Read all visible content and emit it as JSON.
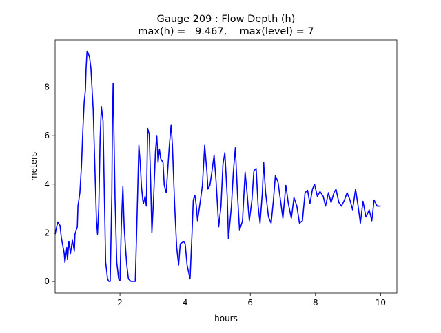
{
  "chart_data": {
    "type": "line",
    "title": "Gauge 209 : Flow Depth (h)",
    "subtitle": "max(h) =   9.467,    max(level) = 7",
    "xlabel": "hours",
    "ylabel": "meters",
    "xlim": [
      0.01,
      10.5
    ],
    "ylim": [
      -0.48,
      9.94
    ],
    "xticks": [
      2,
      4,
      6,
      8,
      10
    ],
    "xtick_labels": [
      "2",
      "4",
      "6",
      "8",
      "10"
    ],
    "yticks": [
      0,
      2,
      4,
      6,
      8
    ],
    "ytick_labels": [
      "0",
      "2",
      "4",
      "6",
      "8"
    ],
    "grid": false,
    "series": [
      {
        "name": "h",
        "color": "#0000ff",
        "x": [
          0.01,
          0.09,
          0.16,
          0.2,
          0.29,
          0.31,
          0.37,
          0.39,
          0.43,
          0.48,
          0.54,
          0.6,
          0.62,
          0.69,
          0.71,
          0.77,
          0.82,
          0.86,
          0.9,
          0.94,
          0.96,
          0.99,
          1.03,
          1.07,
          1.11,
          1.18,
          1.24,
          1.28,
          1.31,
          1.35,
          1.39,
          1.43,
          1.48,
          1.52,
          1.56,
          1.62,
          1.66,
          1.7,
          1.75,
          1.77,
          1.79,
          1.81,
          1.85,
          1.9,
          1.96,
          2.0,
          2.04,
          2.09,
          2.13,
          2.17,
          2.21,
          2.26,
          2.34,
          2.47,
          2.51,
          2.58,
          2.62,
          2.66,
          2.7,
          2.72,
          2.77,
          2.81,
          2.85,
          2.9,
          2.94,
          2.98,
          3.03,
          3.09,
          3.13,
          3.17,
          3.21,
          3.25,
          3.32,
          3.36,
          3.42,
          3.51,
          3.57,
          3.61,
          3.68,
          3.74,
          3.8,
          3.85,
          3.91,
          3.95,
          4.0,
          4.06,
          4.15,
          4.21,
          4.25,
          4.3,
          4.34,
          4.38,
          4.47,
          4.53,
          4.6,
          4.67,
          4.7,
          4.76,
          4.82,
          4.89,
          4.95,
          5.03,
          5.1,
          5.16,
          5.22,
          5.29,
          5.33,
          5.42,
          5.48,
          5.54,
          5.61,
          5.67,
          5.76,
          5.84,
          5.9,
          5.97,
          6.05,
          6.11,
          6.18,
          6.24,
          6.3,
          6.37,
          6.41,
          6.47,
          6.56,
          6.64,
          6.71,
          6.77,
          6.85,
          6.94,
          7.0,
          7.09,
          7.17,
          7.26,
          7.34,
          7.43,
          7.51,
          7.6,
          7.68,
          7.76,
          7.83,
          7.91,
          7.97,
          8.06,
          8.14,
          8.24,
          8.31,
          8.4,
          8.48,
          8.57,
          8.63,
          8.72,
          8.8,
          8.89,
          8.97,
          9.06,
          9.14,
          9.23,
          9.31,
          9.38,
          9.46,
          9.55,
          9.65,
          9.73,
          9.8,
          9.89,
          9.97,
          10.0
        ],
        "y": [
          1.95,
          2.45,
          2.3,
          1.8,
          1.15,
          0.78,
          1.4,
          0.9,
          1.65,
          1.15,
          1.7,
          1.25,
          1.95,
          2.25,
          3.1,
          3.65,
          4.8,
          6.2,
          7.35,
          7.9,
          8.75,
          9.47,
          9.38,
          9.2,
          8.75,
          7.05,
          4.2,
          2.5,
          1.95,
          3.1,
          5.9,
          7.2,
          6.6,
          3.65,
          0.8,
          0.1,
          0.0,
          0.0,
          3.65,
          6.75,
          8.15,
          6.5,
          3.35,
          0.8,
          0.1,
          0.03,
          2.25,
          3.9,
          2.25,
          1.4,
          0.68,
          0.1,
          0.0,
          0.0,
          1.95,
          5.6,
          4.9,
          3.9,
          3.35,
          3.2,
          3.5,
          3.1,
          6.3,
          6.05,
          4.2,
          2.0,
          3.35,
          5.35,
          6.0,
          4.9,
          5.45,
          5.05,
          4.9,
          3.95,
          3.65,
          5.5,
          6.45,
          5.6,
          3.1,
          1.4,
          0.68,
          1.55,
          1.6,
          1.65,
          1.55,
          0.68,
          0.1,
          1.95,
          3.35,
          3.55,
          3.15,
          2.5,
          3.35,
          3.95,
          5.6,
          4.5,
          3.8,
          3.95,
          4.5,
          5.2,
          4.1,
          2.25,
          3.1,
          4.8,
          5.3,
          3.5,
          1.75,
          3.1,
          4.5,
          5.5,
          3.5,
          2.1,
          2.5,
          4.5,
          3.65,
          2.5,
          3.35,
          4.55,
          4.65,
          3.1,
          2.4,
          3.65,
          4.9,
          3.65,
          2.65,
          2.4,
          3.35,
          4.35,
          4.1,
          3.2,
          2.6,
          3.95,
          3.2,
          2.6,
          3.45,
          3.1,
          2.4,
          2.5,
          3.65,
          3.75,
          3.2,
          3.8,
          4.0,
          3.5,
          3.7,
          3.5,
          3.1,
          3.65,
          3.25,
          3.65,
          3.8,
          3.25,
          3.1,
          3.35,
          3.65,
          3.35,
          2.95,
          3.8,
          3.1,
          2.4,
          3.3,
          2.65,
          2.95,
          2.5,
          3.35,
          3.1,
          3.1,
          3.1
        ]
      }
    ]
  }
}
